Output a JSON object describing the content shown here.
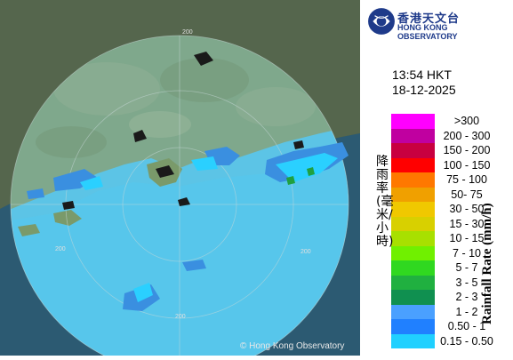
{
  "header": {
    "org_cn": "香港天文台",
    "org_en": "HONG KONG OBSERVATORY"
  },
  "timestamp": {
    "time": "13:54 HKT",
    "date": "18-12-2025"
  },
  "legend": {
    "title_cn": "降雨率(毫米/小時)",
    "title_en": "Rainfall Rate (mm/h)",
    "items": [
      {
        "label": ">300",
        "color": "#ff00ff"
      },
      {
        "label": "200 - 300",
        "color": "#c000a0"
      },
      {
        "label": "150 - 200",
        "color": "#c80040"
      },
      {
        "label": "100 - 150",
        "color": "#ff0000"
      },
      {
        "label": "75 - 100",
        "color": "#ff7800"
      },
      {
        "label": "50- 75",
        "color": "#f0a000"
      },
      {
        "label": "30 - 50",
        "color": "#f0c800"
      },
      {
        "label": "15 - 30",
        "color": "#d8d000"
      },
      {
        "label": "10 - 15",
        "color": "#a8e000"
      },
      {
        "label": "7 - 10",
        "color": "#70f000"
      },
      {
        "label": "5 - 7",
        "color": "#30d820"
      },
      {
        "label": "3 - 5",
        "color": "#20b040"
      },
      {
        "label": "2 - 3",
        "color": "#109050"
      },
      {
        "label": "1 - 2",
        "color": "#4aa0ff"
      },
      {
        "label": "0.50 - 1",
        "color": "#2080ff"
      },
      {
        "label": "0.15 - 0.50",
        "color": "#20d0ff"
      }
    ]
  },
  "map": {
    "ring_labels": [
      "200",
      "200",
      "200",
      "200"
    ],
    "copyright": "© Hong Kong Observatory"
  }
}
